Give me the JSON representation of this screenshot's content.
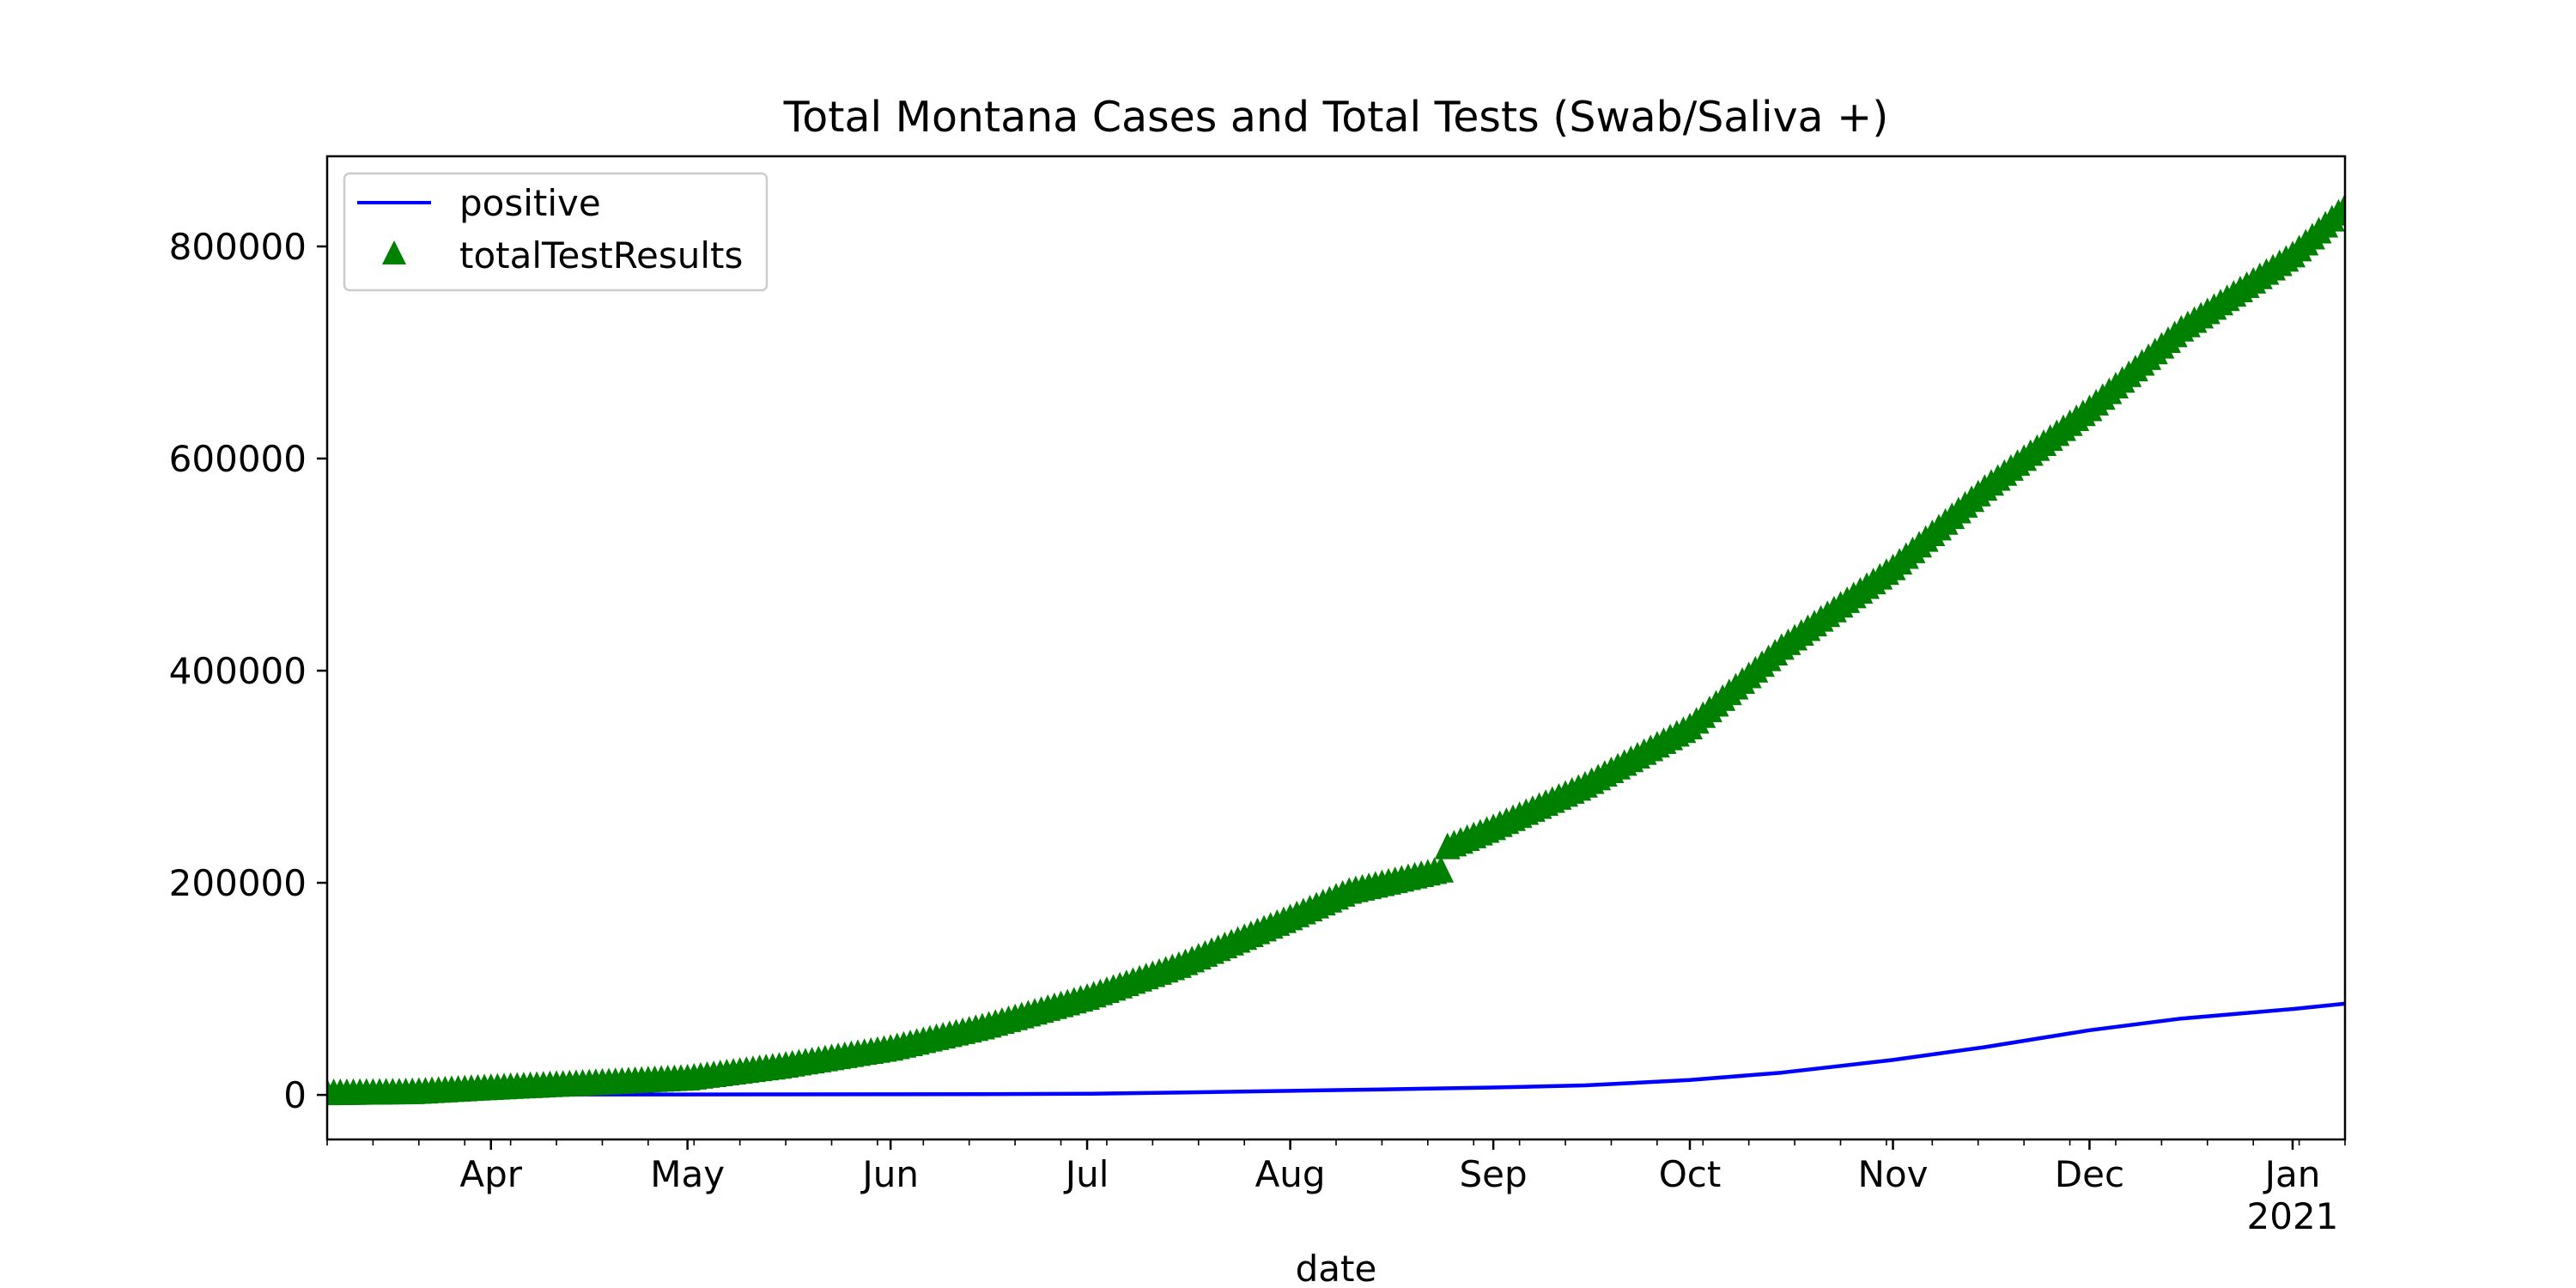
{
  "chart_data": {
    "type": "line",
    "title": "Total Montana Cases and Total Tests (Swab/Saliva +)",
    "xlabel": "date",
    "ylabel": "",
    "x_range": [
      "2020-03-07",
      "2021-01-09"
    ],
    "ylim": [
      -42000,
      885000
    ],
    "y_ticks": [
      {
        "value": 0,
        "label": "0"
      },
      {
        "value": 200000,
        "label": "200000"
      },
      {
        "value": 400000,
        "label": "400000"
      },
      {
        "value": 600000,
        "label": "600000"
      },
      {
        "value": 800000,
        "label": "800000"
      }
    ],
    "x_ticks": [
      {
        "date": "2020-04-01",
        "label": "Apr"
      },
      {
        "date": "2020-05-01",
        "label": "May"
      },
      {
        "date": "2020-06-01",
        "label": "Jun"
      },
      {
        "date": "2020-07-01",
        "label": "Jul"
      },
      {
        "date": "2020-08-01",
        "label": "Aug"
      },
      {
        "date": "2020-09-01",
        "label": "Sep"
      },
      {
        "date": "2020-10-01",
        "label": "Oct"
      },
      {
        "date": "2020-11-01",
        "label": "Nov"
      },
      {
        "date": "2020-12-01",
        "label": "Dec"
      },
      {
        "date": "2021-01-01",
        "label": "Jan",
        "sublabel": "2021"
      }
    ],
    "legend": {
      "position": "upper left"
    },
    "grid": false,
    "series": [
      {
        "name": "positive",
        "style": "line",
        "color": "#0000ff",
        "points": [
          [
            "2020-03-07",
            0
          ],
          [
            "2020-03-20",
            20
          ],
          [
            "2020-04-01",
            200
          ],
          [
            "2020-04-15",
            400
          ],
          [
            "2020-05-01",
            450
          ],
          [
            "2020-05-15",
            470
          ],
          [
            "2020-06-01",
            550
          ],
          [
            "2020-06-15",
            700
          ],
          [
            "2020-07-01",
            1100
          ],
          [
            "2020-07-15",
            2200
          ],
          [
            "2020-08-01",
            3800
          ],
          [
            "2020-08-15",
            5200
          ],
          [
            "2020-09-01",
            7000
          ],
          [
            "2020-09-15",
            9000
          ],
          [
            "2020-10-01",
            14000
          ],
          [
            "2020-10-15",
            21000
          ],
          [
            "2020-11-01",
            33000
          ],
          [
            "2020-11-15",
            45000
          ],
          [
            "2020-12-01",
            61000
          ],
          [
            "2020-12-15",
            72000
          ],
          [
            "2021-01-01",
            81000
          ],
          [
            "2021-01-09",
            86000
          ]
        ]
      },
      {
        "name": "totalTestResults",
        "style": "marker",
        "marker": "triangle",
        "color": "#008000",
        "points": [
          [
            "2020-03-07",
            0
          ],
          [
            "2020-03-20",
            1000
          ],
          [
            "2020-04-01",
            5000
          ],
          [
            "2020-04-15",
            9000
          ],
          [
            "2020-05-01",
            14000
          ],
          [
            "2020-05-15",
            25000
          ],
          [
            "2020-06-01",
            42000
          ],
          [
            "2020-06-15",
            62000
          ],
          [
            "2020-07-01",
            90000
          ],
          [
            "2020-07-15",
            120000
          ],
          [
            "2020-08-01",
            165000
          ],
          [
            "2020-08-10",
            190000
          ],
          [
            "2020-08-24",
            210000
          ],
          [
            "2020-08-25",
            232000
          ],
          [
            "2020-09-01",
            250000
          ],
          [
            "2020-09-15",
            290000
          ],
          [
            "2020-10-01",
            345000
          ],
          [
            "2020-10-15",
            420000
          ],
          [
            "2020-11-01",
            495000
          ],
          [
            "2020-11-15",
            570000
          ],
          [
            "2020-12-01",
            645000
          ],
          [
            "2020-12-15",
            720000
          ],
          [
            "2021-01-01",
            790000
          ],
          [
            "2021-01-09",
            835000
          ]
        ]
      }
    ]
  }
}
